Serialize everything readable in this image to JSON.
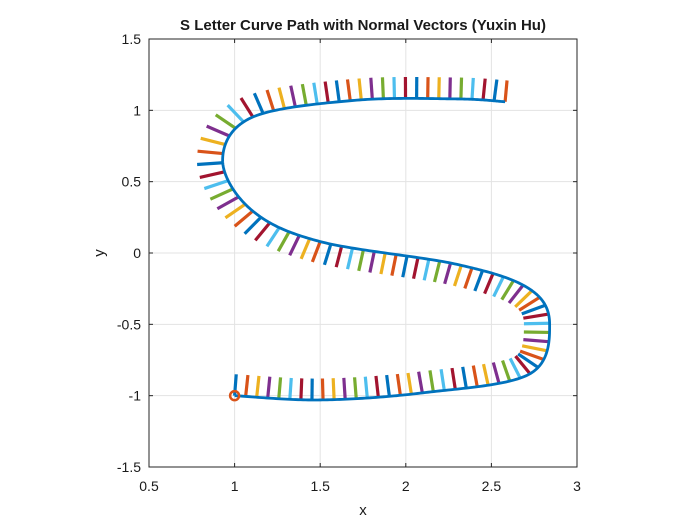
{
  "chart_data": {
    "type": "line",
    "title": "S Letter Curve Path with Normal Vectors (Yuxin Hu)",
    "xlabel": "x",
    "ylabel": "y",
    "xlim": [
      0.5,
      3
    ],
    "ylim": [
      -1.5,
      1.5
    ],
    "xticks": [
      0.5,
      1,
      1.5,
      2,
      2.5,
      3
    ],
    "xtick_labels": [
      "0.5",
      "1",
      "1.5",
      "2",
      "2.5",
      "3"
    ],
    "yticks": [
      -1.5,
      -1,
      -0.5,
      0,
      0.5,
      1,
      1.5
    ],
    "ytick_labels": [
      "-1.5",
      "-1",
      "-0.5",
      "0",
      "0.5",
      "1",
      "1.5"
    ],
    "grid": true,
    "box": true,
    "normal_length": 0.15,
    "series": [
      {
        "kind": "path",
        "color": "#0072BD",
        "control_points": [
          [
            1.0,
            -1.0
          ],
          [
            1.5,
            -1.03
          ],
          [
            2.1,
            -0.98
          ],
          [
            2.72,
            -0.85
          ],
          [
            2.84,
            -0.5
          ],
          [
            2.72,
            -0.25
          ],
          [
            2.3,
            -0.08
          ],
          [
            1.5,
            0.08
          ],
          [
            1.1,
            0.3
          ],
          [
            0.93,
            0.65
          ],
          [
            1.1,
            0.95
          ],
          [
            1.7,
            1.07
          ],
          [
            2.3,
            1.08
          ],
          [
            2.58,
            1.06
          ]
        ]
      },
      {
        "kind": "start_marker",
        "color": "#D95319",
        "x": 1,
        "y": -1
      },
      {
        "kind": "normal_vectors",
        "count": 100,
        "color_cycle": [
          "#0072BD",
          "#D95319",
          "#EDB120",
          "#7E2F8E",
          "#77AC30",
          "#4DBEEE",
          "#A2142F"
        ]
      }
    ]
  }
}
